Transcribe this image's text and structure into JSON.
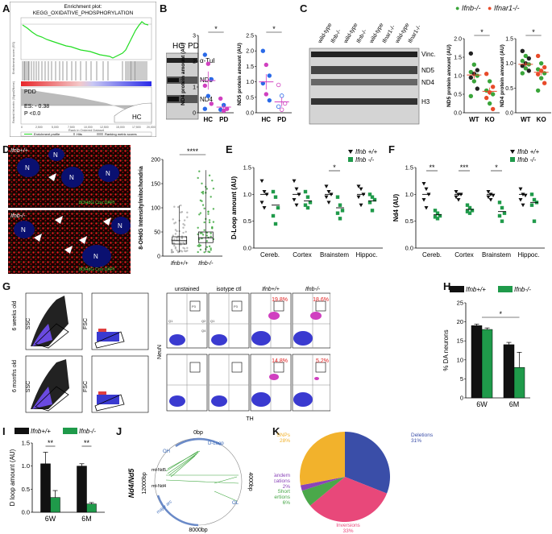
{
  "panels": {
    "A": "A",
    "B": "B",
    "C": "C",
    "D": "D",
    "E": "E",
    "F": "F",
    "G": "G",
    "H": "H",
    "I": "I",
    "J": "J",
    "K": "K"
  },
  "gsea": {
    "title_line1": "Enrichment plot:",
    "title_line2": "KEGG_OXIDATIVE_PHOSPHORYLATION",
    "group_pdd": "PDD",
    "group_hc": "HC",
    "es": "ES: - 0.38",
    "p": "P <0.0",
    "xaxis_title": "Rank in Ordered Dataset",
    "ylabel_top": "Enrichment score (ES)",
    "ylabel_bottom": "Ranked list metric (Signal2Noise)",
    "legend": [
      "Enrichment profile",
      "Hits",
      "Ranking metric scores"
    ],
    "xticks": [
      "0",
      "2,500",
      "5,000",
      "7,500",
      "10,000",
      "12,500",
      "15,000",
      "17,500",
      "20,000"
    ]
  },
  "blotB": {
    "hc": "HC",
    "pd": "PD",
    "labels": [
      "α-Tub",
      "ND5",
      "ND4"
    ]
  },
  "blotC": {
    "lanes": [
      "wild-type",
      "Ifnb-/-",
      "wild-type",
      "Ifnb-/-",
      "wild-type",
      "Ifnar1-/-",
      "wild-type",
      "Ifnar1-/-"
    ],
    "labels": [
      "Vinc.",
      "ND5",
      "ND4",
      "H3"
    ]
  },
  "legendC": {
    "a": "Ifnb-/-",
    "b": "Ifnar1-/-"
  },
  "micro": {
    "top_geno": "Ifnb+/+",
    "bot_geno": "Ifnb-/-",
    "stain": "8OHdG Cox DAPI",
    "n": "N"
  },
  "sig": {
    "star1": "*",
    "star2": "**",
    "star3": "***",
    "star4": "****"
  },
  "chart_data": [
    {
      "panel": "B-left",
      "type": "scatter",
      "ylabel": "ND4 protein amount (AU)",
      "categories": [
        "HC",
        "PD"
      ],
      "ylim": [
        0,
        3
      ],
      "yticks": [
        "0",
        "1",
        "2",
        "3"
      ],
      "series": [
        {
          "category": "HC",
          "values": [
            2.25,
            1.9,
            1.3,
            1.05,
            0.65,
            0.35,
            0.15
          ],
          "mean": 1.25,
          "sem": 0.35
        },
        {
          "category": "PD",
          "values": [
            0.55,
            0.3,
            0.15,
            0.12,
            0.08
          ],
          "mean": 0.22,
          "sem": 0.1
        }
      ],
      "significance": "*"
    },
    {
      "panel": "B-right",
      "type": "scatter",
      "ylabel": "ND5 protein amount (AU)",
      "categories": [
        "HC",
        "PD"
      ],
      "ylim": [
        0,
        2.5
      ],
      "yticks": [
        "0.0",
        "0.5",
        "1.0",
        "1.5",
        "2.0",
        "2.5"
      ],
      "series": [
        {
          "category": "HC",
          "values": [
            2.0,
            1.55,
            1.2,
            0.95,
            0.6,
            0.4
          ],
          "mean": 1.0,
          "sem": 0.25
        },
        {
          "category": "PD",
          "values": [
            0.9,
            0.55,
            0.3,
            0.2,
            0.1
          ],
          "mean": 0.35,
          "sem": 0.15
        }
      ],
      "significance": "*"
    },
    {
      "panel": "C-left",
      "type": "scatter",
      "ylabel": "ND5 protein amount (AU)",
      "categories": [
        "WT",
        "KO"
      ],
      "ylim": [
        0,
        2.0
      ],
      "yticks": [
        "0.0",
        "0.5",
        "1.0",
        "1.5",
        "2.0"
      ],
      "series": [
        {
          "category": "WT",
          "values": [
            1.6,
            1.3,
            1.15,
            1.1,
            1.05,
            1.0,
            0.95,
            0.85,
            0.65,
            0.45
          ],
          "mean": 1.02,
          "sem": 0.1
        },
        {
          "category": "KO",
          "values": [
            1.05,
            0.85,
            0.7,
            0.6,
            0.55,
            0.5,
            0.4,
            0.25,
            0.1
          ],
          "mean": 0.58,
          "sem": 0.1
        }
      ],
      "significance": "*"
    },
    {
      "panel": "C-right",
      "type": "scatter",
      "ylabel": "ND4 protein amount (AU)",
      "categories": [
        "WT",
        "KO"
      ],
      "ylim": [
        0,
        1.5
      ],
      "yticks": [
        "0.0",
        "0.5",
        "1.0",
        "1.5"
      ],
      "series": [
        {
          "category": "WT",
          "values": [
            1.25,
            1.15,
            1.1,
            1.05,
            1.0,
            0.98,
            0.95,
            0.9,
            0.85,
            0.8
          ],
          "mean": 0.98,
          "sem": 0.05
        },
        {
          "category": "KO",
          "values": [
            1.15,
            1.0,
            0.92,
            0.88,
            0.85,
            0.8,
            0.78,
            0.7,
            0.6,
            0.45
          ],
          "mean": 0.82,
          "sem": 0.06
        }
      ],
      "significance": "*"
    },
    {
      "panel": "D",
      "type": "box",
      "ylabel": "8-OHdG Intensity/mitochondria",
      "categories": [
        "Ifnb+/+",
        "Ifnb-/-"
      ],
      "ylim": [
        0,
        200
      ],
      "yticks": [
        "0",
        "50",
        "100",
        "150",
        "200"
      ],
      "series": [
        {
          "category": "Ifnb+/+",
          "min": 8,
          "q1": 25,
          "median": 32,
          "q3": 40,
          "max": 105
        },
        {
          "category": "Ifnb-/-",
          "min": 8,
          "q1": 28,
          "median": 38,
          "q3": 50,
          "max": 178
        }
      ],
      "significance": "****"
    },
    {
      "panel": "E",
      "type": "scatter",
      "ylabel": "D-Loop amount (AU)",
      "categories": [
        "Cereb.",
        "Cortex",
        "Brainstem",
        "Hippoc."
      ],
      "ylim": [
        0,
        1.5
      ],
      "yticks": [
        "0.0",
        "0.5",
        "1.0",
        "1.5"
      ],
      "legend": [
        "Ifnb +/+",
        "Ifnb -/-"
      ],
      "series": [
        {
          "name": "Ifnb +/+",
          "means": [
            1.0,
            1.0,
            1.0,
            1.0
          ],
          "values": [
            [
              1.25,
              1.05,
              1.0,
              0.85,
              0.75
            ],
            [
              1.25,
              1.1,
              1.0,
              0.9,
              0.8
            ],
            [
              1.15,
              1.05,
              1.0,
              0.95,
              0.85
            ],
            [
              1.15,
              1.1,
              1.0,
              0.95,
              0.8
            ]
          ]
        },
        {
          "name": "Ifnb -/-",
          "means": [
            0.8,
            0.88,
            0.75,
            0.88
          ],
          "values": [
            [
              1.05,
              0.95,
              0.75,
              0.6,
              0.45
            ],
            [
              1.05,
              0.95,
              0.85,
              0.8,
              0.75
            ],
            [
              0.95,
              0.8,
              0.7,
              0.65,
              0.55
            ],
            [
              1.0,
              0.95,
              0.9,
              0.85,
              0.7
            ]
          ]
        }
      ],
      "significance": [
        {
          "category": "Brainstem",
          "label": "*"
        }
      ]
    },
    {
      "panel": "F",
      "type": "scatter",
      "ylabel": "Nd4 (AU)",
      "categories": [
        "Cereb.",
        "Cortex",
        "Brainstem",
        "Hippoc."
      ],
      "ylim": [
        0,
        1.5
      ],
      "yticks": [
        "0.0",
        "0.5",
        "1.0",
        "1.5"
      ],
      "legend": [
        "Ifnb +/+",
        "Ifnb -/-"
      ],
      "series": [
        {
          "name": "Ifnb +/+",
          "means": [
            1.0,
            1.0,
            1.0,
            1.0
          ],
          "values": [
            [
              1.2,
              1.1,
              1.0,
              0.9,
              0.75
            ],
            [
              1.05,
              1.0,
              1.0,
              0.95,
              0.9
            ],
            [
              1.05,
              1.0,
              0.98,
              0.95,
              0.9
            ],
            [
              1.1,
              1.0,
              0.98,
              0.9,
              0.8
            ]
          ]
        },
        {
          "name": "Ifnb -/-",
          "means": [
            0.62,
            0.72,
            0.68,
            0.85
          ],
          "values": [
            [
              0.7,
              0.65,
              0.6,
              0.58,
              0.55
            ],
            [
              0.8,
              0.75,
              0.7,
              0.68,
              0.65
            ],
            [
              0.85,
              0.75,
              0.65,
              0.6,
              0.5
            ],
            [
              1.0,
              0.9,
              0.85,
              0.8,
              0.5
            ]
          ]
        }
      ],
      "significance": [
        {
          "category": "Cereb.",
          "label": "**"
        },
        {
          "category": "Cortex",
          "label": "***"
        },
        {
          "category": "Brainstem",
          "label": "*"
        }
      ]
    },
    {
      "panel": "H",
      "type": "bar",
      "ylabel": "% DA neurons",
      "categories": [
        "6W",
        "6M"
      ],
      "ylim": [
        0,
        25
      ],
      "yticks": [
        "0",
        "5",
        "10",
        "15",
        "20",
        "25"
      ],
      "legend": [
        "Ifnb+/+",
        "Ifnb-/-"
      ],
      "series": [
        {
          "name": "Ifnb+/+",
          "values": [
            19,
            14
          ],
          "err": [
            0.4,
            0.6
          ]
        },
        {
          "name": "Ifnb-/-",
          "values": [
            18,
            8
          ],
          "err": [
            0.4,
            4
          ]
        }
      ],
      "significance": "*"
    },
    {
      "panel": "I",
      "type": "bar",
      "ylabel": "D loop amount (AU)",
      "categories": [
        "6W",
        "6M"
      ],
      "ylim": [
        0,
        1.5
      ],
      "yticks": [
        "0.0",
        "0.5",
        "1.0",
        "1.5"
      ],
      "legend": [
        "Ifnb+/+",
        "Ifnb-/-"
      ],
      "series": [
        {
          "name": "Ifnb+/+",
          "values": [
            1.05,
            1.0
          ],
          "err": [
            0.25,
            0.05
          ]
        },
        {
          "name": "Ifnb-/-",
          "values": [
            0.32,
            0.18
          ],
          "err": [
            0.15,
            0.03
          ]
        }
      ],
      "significance": [
        "**",
        "**"
      ]
    },
    {
      "panel": "K",
      "type": "pie",
      "slices": [
        {
          "label": "Deletions",
          "value": 31,
          "pct": "31%",
          "color": "#3a4ea8"
        },
        {
          "label": "Inversions",
          "value": 33,
          "pct": "33%",
          "color": "#e8487a"
        },
        {
          "label": "Short insertions",
          "value": 6,
          "pct": "6%",
          "color": "#4aa84a"
        },
        {
          "label": "Tandem duplications",
          "value": 2,
          "pct": "2%",
          "color": "#8a44b8"
        },
        {
          "label": "SNPs",
          "value": 28,
          "pct": "28%",
          "color": "#f2b22c"
        }
      ]
    }
  ],
  "flow": {
    "row_labels": [
      "6 weeks old",
      "6 months old"
    ],
    "ssc": "SSC",
    "fsc": "FSC",
    "headers": [
      "unstained",
      "isotype ctl",
      "Ifnb+/+",
      "Ifnb-/-"
    ],
    "pct_top": [
      "19.8%",
      "18.6%"
    ],
    "pct_bot": [
      "14.8%",
      "5.2%"
    ],
    "neun": "NeuN",
    "th": "TH",
    "gates": [
      "Q1",
      "Q2",
      "Q3",
      "Q4",
      "P3",
      "P1",
      "P2"
    ]
  },
  "genome": {
    "side_label": "Nd4/Nd5",
    "side_pos": "12000bp",
    "top": "0bp",
    "right": "4000bp",
    "bottom": "8000bp",
    "dloop": "D-Loop",
    "oh": "OH",
    "ol": "OL",
    "mtnd5": "mt-Nd5",
    "mtnd4": "mt-Nd4",
    "major_arc": "major arc"
  }
}
